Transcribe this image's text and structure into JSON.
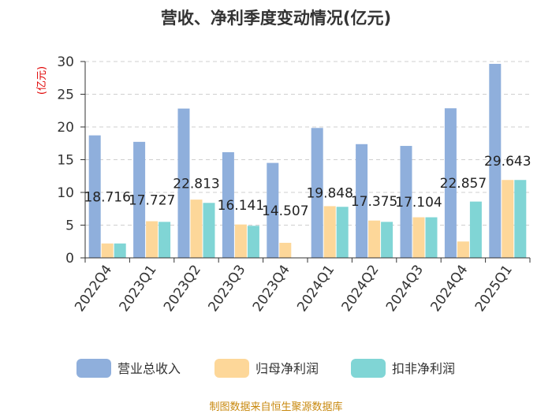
{
  "chart_data": {
    "type": "bar",
    "title": "营收、净利季度变动情况(亿元)",
    "ylabel": "(亿元)",
    "xlabel": "",
    "ylim": [
      0,
      30
    ],
    "yticks": [
      0,
      5,
      10,
      15,
      20,
      25,
      30
    ],
    "grid": true,
    "legend_position": "bottom",
    "categories": [
      "2022Q4",
      "2023Q1",
      "2023Q2",
      "2023Q3",
      "2023Q4",
      "2024Q1",
      "2024Q2",
      "2024Q3",
      "2024Q4",
      "2025Q1"
    ],
    "series": [
      {
        "name": "营业总收入",
        "color": "#8fafdc",
        "values": [
          18.716,
          17.727,
          22.813,
          16.141,
          14.507,
          19.848,
          17.375,
          17.104,
          22.857,
          29.643
        ]
      },
      {
        "name": "归母净利润",
        "color": "#fdd799",
        "values": [
          2.2,
          5.6,
          8.9,
          5.1,
          2.3,
          7.9,
          5.7,
          6.2,
          2.5,
          11.9
        ]
      },
      {
        "name": "扣非净利润",
        "color": "#80d5d5",
        "values": [
          2.2,
          5.5,
          8.4,
          4.9,
          0,
          7.8,
          5.5,
          6.2,
          8.6,
          11.9
        ]
      }
    ],
    "data_labels": [
      "18.716",
      "17.727",
      "22.813",
      "16.141",
      "14.507",
      "19.848",
      "17.375",
      "17.104",
      "22.857",
      "29.643"
    ],
    "source": "制图数据来自恒生聚源数据库"
  }
}
